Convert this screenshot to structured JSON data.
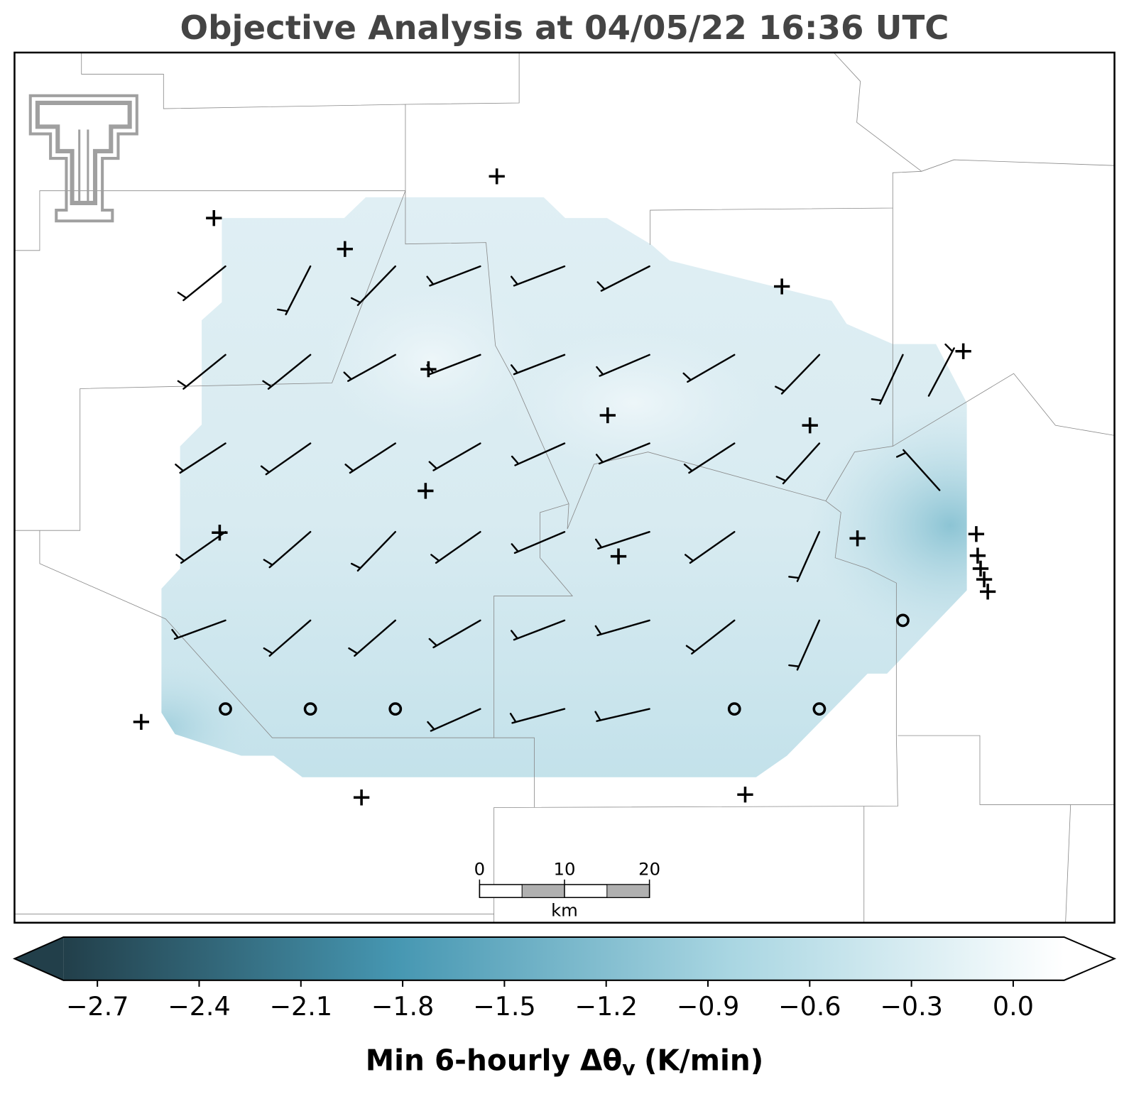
{
  "title": "Objective Analysis at 04/05/22 16:36 UTC",
  "colorbar": {
    "lim": [
      -2.8,
      0.15
    ],
    "extend": "both",
    "colormap": [
      "#223f4a",
      "#4697b2",
      "#a9d6e2",
      "#ffffff"
    ],
    "ticks": [
      {
        "value": -2.7,
        "label": "−2.7"
      },
      {
        "value": -2.4,
        "label": "−2.4"
      },
      {
        "value": -2.1,
        "label": "−2.1"
      },
      {
        "value": -1.8,
        "label": "−1.8"
      },
      {
        "value": -1.5,
        "label": "−1.5"
      },
      {
        "value": -1.2,
        "label": "−1.2"
      },
      {
        "value": -0.9,
        "label": "−0.9"
      },
      {
        "value": -0.6,
        "label": "−0.6"
      },
      {
        "value": -0.3,
        "label": "−0.3"
      },
      {
        "value": 0.0,
        "label": "0.0"
      }
    ],
    "label_main": "Min 6-hourly Δθ",
    "label_sub": "v",
    "label_units": "(K/min)"
  },
  "scale_bar": {
    "lim": [
      0,
      20
    ],
    "ticks": [
      0,
      10,
      20
    ],
    "unit": "km"
  }
}
